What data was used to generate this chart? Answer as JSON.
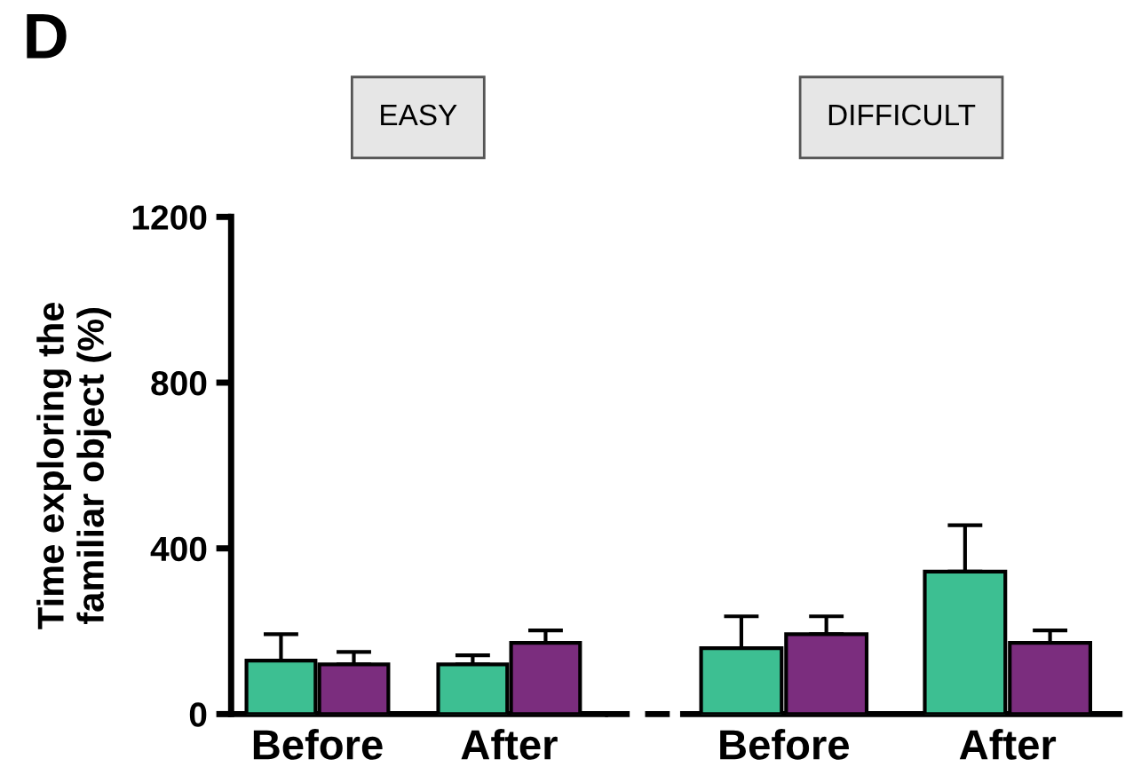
{
  "chart_data": [
    {
      "type": "bar",
      "title": "EASY",
      "ylabel": "Time exploring the\nfamiliar object (%)",
      "annotations": [
        "D"
      ],
      "categories": [
        "Before",
        "After"
      ],
      "ylim": [
        0,
        1200
      ],
      "yticks": [
        0,
        400,
        800,
        1200
      ],
      "grid": false,
      "series": [
        {
          "color": "#3dbf92",
          "values": [
            129,
            120
          ],
          "errors": [
            [
              129,
              193
            ],
            [
              120,
              142
            ]
          ]
        },
        {
          "color": "#7b2d7e",
          "values": [
            120,
            172
          ],
          "errors": [
            [
              120,
              150
            ],
            [
              172,
              202
            ]
          ]
        }
      ]
    },
    {
      "type": "bar",
      "title": "DIFFICULT",
      "categories": [
        "Before",
        "After"
      ],
      "ylim": [
        0,
        1200
      ],
      "tick_labels": "x",
      "grid": false,
      "series": [
        {
          "color": "#3dbf92",
          "values": [
            159,
            344
          ],
          "errors": [
            [
              159,
              236
            ],
            [
              344,
              456
            ]
          ]
        },
        {
          "color": "#7b2d7e",
          "values": [
            193,
            172
          ],
          "errors": [
            [
              193,
              236
            ],
            [
              172,
              202
            ]
          ]
        }
      ]
    }
  ]
}
